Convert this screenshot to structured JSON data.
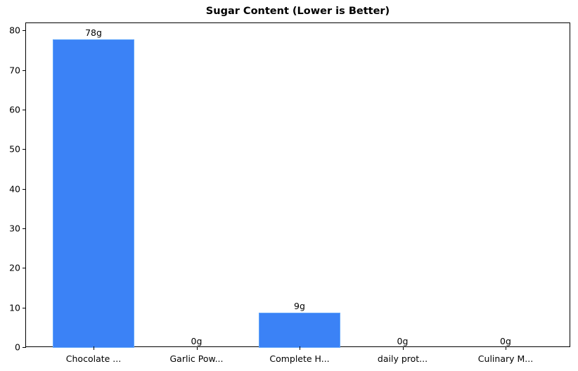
{
  "chart_data": {
    "type": "bar",
    "title": "Sugar Content (Lower is Better)",
    "xlabel": "",
    "ylabel": "",
    "categories": [
      "Chocolate ...",
      "Garlic Pow...",
      "Complete H...",
      "daily prot...",
      "Culinary M..."
    ],
    "values": [
      78,
      0,
      8.8,
      0,
      0
    ],
    "value_labels": [
      "78g",
      "0g",
      "9g",
      "0g",
      "0g"
    ],
    "ylim": [
      0,
      82
    ],
    "yticks": [
      0,
      10,
      20,
      30,
      40,
      50,
      60,
      70,
      80
    ],
    "grid": false,
    "legend": null,
    "bar_color": "#3b82f6",
    "bar_edge_color": "#60a5fa"
  }
}
